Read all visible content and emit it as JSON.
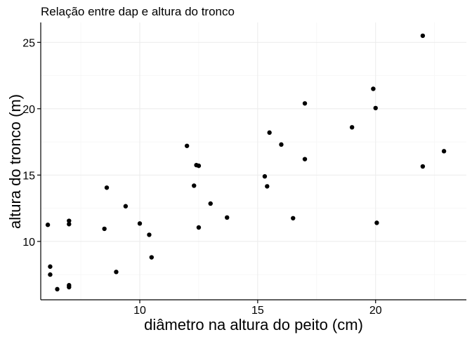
{
  "chart_data": {
    "type": "scatter",
    "title": "Relação entre dap e altura do tronco",
    "xlabel": "diâmetro na altura do peito (cm)",
    "ylabel": "altura do tronco (m)",
    "xlim": [
      5.8,
      23.85
    ],
    "ylim": [
      5.6,
      26.5
    ],
    "xticks": [
      10,
      15,
      20
    ],
    "yticks": [
      10,
      15,
      20,
      25
    ],
    "xticks_minor": [
      7.5,
      12.5,
      17.5,
      22.5
    ],
    "yticks_minor": [
      7.5,
      12.5,
      17.5,
      22.5
    ],
    "grid": true,
    "legend": "none",
    "points": [
      {
        "x": 6.1,
        "y": 11.25
      },
      {
        "x": 6.2,
        "y": 8.1
      },
      {
        "x": 6.2,
        "y": 7.5
      },
      {
        "x": 6.5,
        "y": 6.4
      },
      {
        "x": 7.0,
        "y": 11.55
      },
      {
        "x": 7.0,
        "y": 11.3
      },
      {
        "x": 7.0,
        "y": 6.7
      },
      {
        "x": 7.0,
        "y": 6.55
      },
      {
        "x": 8.5,
        "y": 10.95
      },
      {
        "x": 8.6,
        "y": 14.05
      },
      {
        "x": 9.0,
        "y": 7.7
      },
      {
        "x": 9.4,
        "y": 12.65
      },
      {
        "x": 10.0,
        "y": 11.35
      },
      {
        "x": 10.4,
        "y": 10.5
      },
      {
        "x": 10.5,
        "y": 8.8
      },
      {
        "x": 12.0,
        "y": 17.2
      },
      {
        "x": 12.3,
        "y": 14.2
      },
      {
        "x": 12.4,
        "y": 15.75
      },
      {
        "x": 12.5,
        "y": 15.7
      },
      {
        "x": 12.5,
        "y": 11.05
      },
      {
        "x": 13.0,
        "y": 12.85
      },
      {
        "x": 13.7,
        "y": 11.8
      },
      {
        "x": 15.3,
        "y": 14.9
      },
      {
        "x": 15.4,
        "y": 14.15
      },
      {
        "x": 15.5,
        "y": 18.2
      },
      {
        "x": 16.0,
        "y": 17.3
      },
      {
        "x": 16.5,
        "y": 11.75
      },
      {
        "x": 17.0,
        "y": 20.4
      },
      {
        "x": 17.0,
        "y": 16.2
      },
      {
        "x": 19.0,
        "y": 18.6
      },
      {
        "x": 19.9,
        "y": 21.5
      },
      {
        "x": 20.0,
        "y": 20.05
      },
      {
        "x": 20.05,
        "y": 11.4
      },
      {
        "x": 22.0,
        "y": 25.5
      },
      {
        "x": 22.0,
        "y": 15.65
      },
      {
        "x": 22.9,
        "y": 16.8
      }
    ]
  }
}
